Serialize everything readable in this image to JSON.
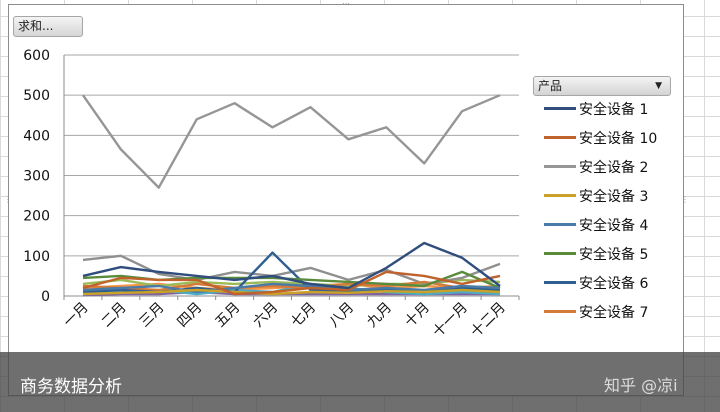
{
  "pivot_button": {
    "label": "求和..."
  },
  "legend": {
    "field_label": "产品",
    "dropdown_icon": "dropdown-arrow-icon"
  },
  "caption": "商务数据分析",
  "watermark": "知乎 @凉i",
  "chart_data": {
    "type": "line",
    "title": "",
    "xlabel": "",
    "ylabel": "",
    "ylim": [
      0,
      600
    ],
    "yticks": [
      0,
      100,
      200,
      300,
      400,
      500,
      600
    ],
    "grid": true,
    "legend_position": "right",
    "categories": [
      "一月",
      "二月",
      "三月",
      "四月",
      "五月",
      "六月",
      "七月",
      "八月",
      "九月",
      "十月",
      "十一月",
      "十二月"
    ],
    "series": [
      {
        "name": "安全设备 1",
        "color": "#2f4d7d",
        "values": [
          50,
          72,
          60,
          50,
          40,
          50,
          30,
          20,
          70,
          132,
          95,
          25
        ]
      },
      {
        "name": "安全设备 10",
        "color": "#c0622b",
        "values": [
          20,
          45,
          40,
          40,
          5,
          10,
          20,
          15,
          60,
          50,
          30,
          50
        ]
      },
      {
        "name": "安全设备 2",
        "color": "#969696",
        "values": [
          500,
          365,
          270,
          440,
          480,
          420,
          470,
          390,
          420,
          330,
          460,
          500
        ]
      },
      {
        "name": "安全设备 3",
        "color": "#c9a227",
        "values": [
          5,
          8,
          10,
          15,
          10,
          5,
          10,
          8,
          12,
          10,
          15,
          10
        ]
      },
      {
        "name": "安全设备 4",
        "color": "#4a7aa6",
        "values": [
          15,
          20,
          25,
          10,
          20,
          30,
          25,
          15,
          20,
          15,
          25,
          20
        ]
      },
      {
        "name": "安全设备 5",
        "color": "#5a8a3c",
        "values": [
          45,
          50,
          40,
          45,
          45,
          45,
          40,
          35,
          30,
          25,
          60,
          20
        ]
      },
      {
        "name": "安全设备 6",
        "color": "#2f5f8f",
        "values": [
          10,
          15,
          10,
          20,
          10,
          108,
          15,
          12,
          15,
          10,
          20,
          15
        ]
      },
      {
        "name": "安全设备 7",
        "color": "#d47a3a",
        "values": [
          25,
          20,
          15,
          30,
          20,
          25,
          20,
          30,
          25,
          35,
          20,
          15
        ]
      },
      {
        "values": [
          90,
          100,
          55,
          40,
          60,
          50,
          70,
          40,
          65,
          30,
          45,
          80
        ],
        "color": "#8f8f8f"
      },
      {
        "values": [
          30,
          40,
          25,
          35,
          30,
          35,
          30,
          25,
          30,
          30,
          40,
          35
        ],
        "color": "#9bbb59"
      },
      {
        "values": [
          5,
          10,
          15,
          5,
          15,
          10,
          30,
          20,
          10,
          5,
          10,
          5
        ],
        "color": "#4bacc6"
      },
      {
        "values": [
          20,
          25,
          30,
          20,
          15,
          20,
          25,
          30,
          20,
          25,
          20,
          25
        ],
        "color": "#f79646"
      },
      {
        "values": [
          2,
          5,
          5,
          10,
          5,
          5,
          5,
          5,
          5,
          5,
          5,
          5
        ],
        "color": "#8064a2"
      }
    ]
  }
}
